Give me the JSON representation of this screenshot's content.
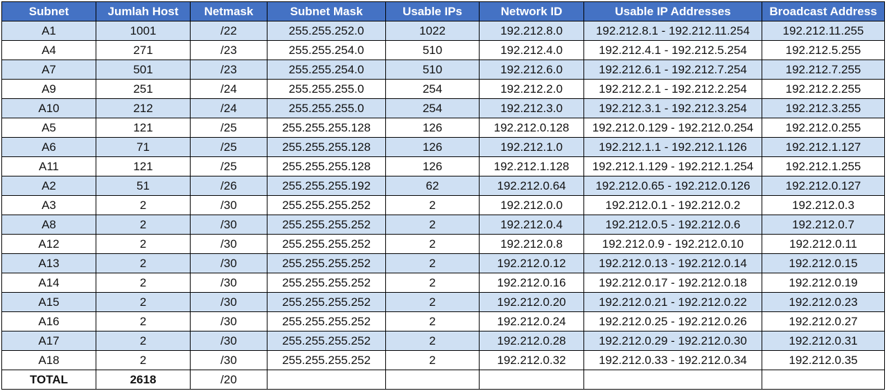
{
  "colors": {
    "header_bg": "#4472c4",
    "header_text": "#ffffff",
    "row_alt_bg": "#cfe0f3",
    "row_bg": "#ffffff"
  },
  "headers": [
    "Subnet",
    "Jumlah Host",
    "Netmask",
    "Subnet Mask",
    "Usable IPs",
    "Network ID",
    "Usable IP Addresses",
    "Broadcast Address"
  ],
  "rows": [
    [
      "A1",
      "1001",
      "/22",
      "255.255.252.0",
      "1022",
      "192.212.8.0",
      "192.212.8.1 - 192.212.11.254",
      "192.212.11.255"
    ],
    [
      "A4",
      "271",
      "/23",
      "255.255.254.0",
      "510",
      "192.212.4.0",
      "192.212.4.1 - 192.212.5.254",
      "192.212.5.255"
    ],
    [
      "A7",
      "501",
      "/23",
      "255.255.254.0",
      "510",
      "192.212.6.0",
      "192.212.6.1 - 192.212.7.254",
      "192.212.7.255"
    ],
    [
      "A9",
      "251",
      "/24",
      "255.255.255.0",
      "254",
      "192.212.2.0",
      "192.212.2.1 - 192.212.2.254",
      "192.212.2.255"
    ],
    [
      "A10",
      "212",
      "/24",
      "255.255.255.0",
      "254",
      "192.212.3.0",
      "192.212.3.1 - 192.212.3.254",
      "192.212.3.255"
    ],
    [
      "A5",
      "121",
      "/25",
      "255.255.255.128",
      "126",
      "192.212.0.128",
      "192.212.0.129 - 192.212.0.254",
      "192.212.0.255"
    ],
    [
      "A6",
      "71",
      "/25",
      "255.255.255.128",
      "126",
      "192.212.1.0",
      "192.212.1.1 - 192.212.1.126",
      "192.212.1.127"
    ],
    [
      "A11",
      "121",
      "/25",
      "255.255.255.128",
      "126",
      "192.212.1.128",
      "192.212.1.129 - 192.212.1.254",
      "192.212.1.255"
    ],
    [
      "A2",
      "51",
      "/26",
      "255.255.255.192",
      "62",
      "192.212.0.64",
      "192.212.0.65 - 192.212.0.126",
      "192.212.0.127"
    ],
    [
      "A3",
      "2",
      "/30",
      "255.255.255.252",
      "2",
      "192.212.0.0",
      "192.212.0.1 - 192.212.0.2",
      "192.212.0.3"
    ],
    [
      "A8",
      "2",
      "/30",
      "255.255.255.252",
      "2",
      "192.212.0.4",
      "192.212.0.5 - 192.212.0.6",
      "192.212.0.7"
    ],
    [
      "A12",
      "2",
      "/30",
      "255.255.255.252",
      "2",
      "192.212.0.8",
      "192.212.0.9 - 192.212.0.10",
      "192.212.0.11"
    ],
    [
      "A13",
      "2",
      "/30",
      "255.255.255.252",
      "2",
      "192.212.0.12",
      "192.212.0.13 - 192.212.0.14",
      "192.212.0.15"
    ],
    [
      "A14",
      "2",
      "/30",
      "255.255.255.252",
      "2",
      "192.212.0.16",
      "192.212.0.17 - 192.212.0.18",
      "192.212.0.19"
    ],
    [
      "A15",
      "2",
      "/30",
      "255.255.255.252",
      "2",
      "192.212.0.20",
      "192.212.0.21 - 192.212.0.22",
      "192.212.0.23"
    ],
    [
      "A16",
      "2",
      "/30",
      "255.255.255.252",
      "2",
      "192.212.0.24",
      "192.212.0.25 - 192.212.0.26",
      "192.212.0.27"
    ],
    [
      "A17",
      "2",
      "/30",
      "255.255.255.252",
      "2",
      "192.212.0.28",
      "192.212.0.29 - 192.212.0.30",
      "192.212.0.31"
    ],
    [
      "A18",
      "2",
      "/30",
      "255.255.255.252",
      "2",
      "192.212.0.32",
      "192.212.0.33 - 192.212.0.34",
      "192.212.0.35"
    ]
  ],
  "total": {
    "label": "TOTAL",
    "hosts": "2618",
    "netmask": "/20"
  }
}
